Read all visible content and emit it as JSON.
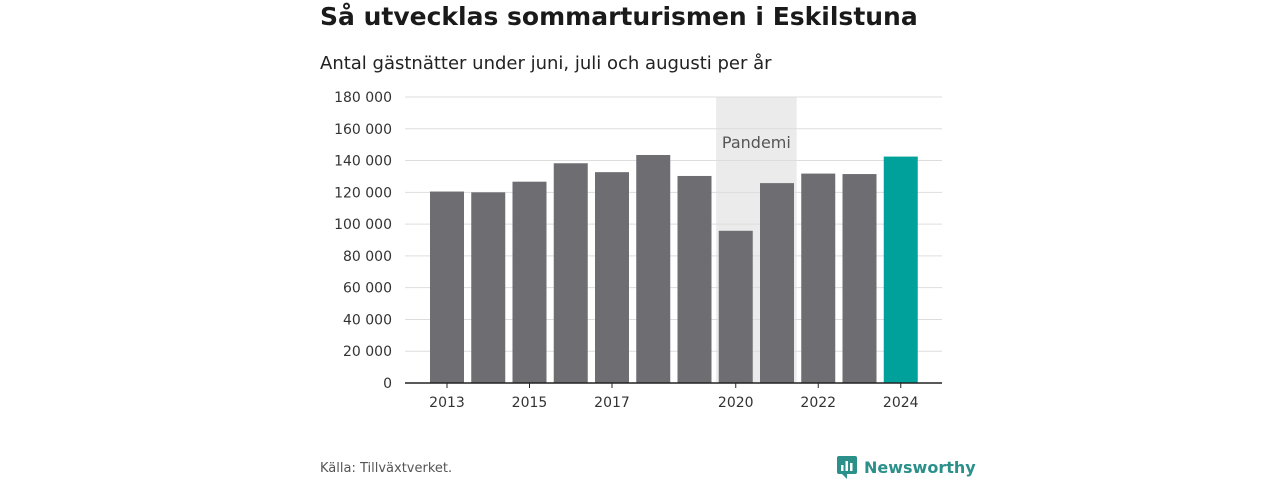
{
  "title": "Så utvecklas sommarturismen i Eskilstuna",
  "subtitle": "Antal gästnätter under juni, juli och augusti per år",
  "source": "Källa: Tillväxtverket.",
  "brand": {
    "name": "Newsworthy",
    "icon": "newsworthy-logo-icon",
    "color": "#2b8f8a"
  },
  "chart_data": {
    "type": "bar",
    "categories": [
      "2013",
      "2014",
      "2015",
      "2016",
      "2017",
      "2018",
      "2019",
      "2020",
      "2021",
      "2022",
      "2023",
      "2024"
    ],
    "x_tick_labels": [
      "2013",
      "",
      "2015",
      "",
      "2017",
      "",
      "",
      "2020",
      "",
      "2022",
      "",
      "2024"
    ],
    "values": [
      120500,
      120000,
      126700,
      138300,
      132700,
      143500,
      130300,
      95800,
      125800,
      131800,
      131500,
      142500
    ],
    "ylim": [
      0,
      180000
    ],
    "y_ticks": [
      0,
      20000,
      40000,
      60000,
      80000,
      100000,
      120000,
      140000,
      160000,
      180000
    ],
    "y_tick_labels": [
      "0",
      "20 000",
      "40 000",
      "60 000",
      "80 000",
      "100 000",
      "120 000",
      "140 000",
      "160 000",
      "180 000"
    ],
    "grid": true,
    "annotation": {
      "label": "Pandemi",
      "from": "2020",
      "to": "2021"
    },
    "colors": {
      "bar": "#6e6d72",
      "highlight": "#00a19a",
      "band": "#ebebeb",
      "grid": "#dddddd"
    },
    "highlight_category": "2024"
  }
}
